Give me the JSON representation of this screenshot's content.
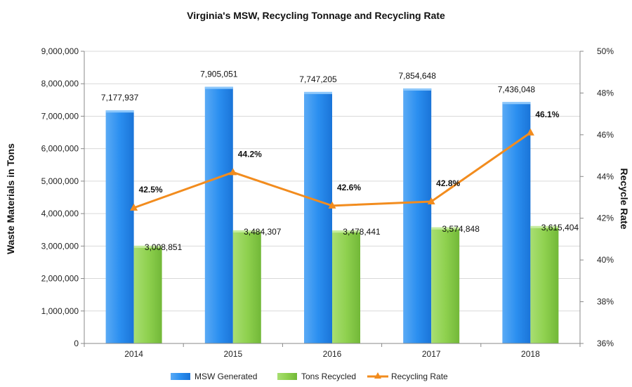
{
  "chart_data": {
    "type": "bar",
    "title": "Virginia's MSW, Recycling Tonnage and Recycling Rate",
    "ylabel": "Waste Materials in Tons",
    "y2label": "Recycle Rate",
    "xlabel": "",
    "categories": [
      "2014",
      "2015",
      "2016",
      "2017",
      "2018"
    ],
    "ylim": [
      0,
      9000000
    ],
    "y2lim": [
      36,
      50
    ],
    "yticks": [
      "0",
      "1,000,000",
      "2,000,000",
      "3,000,000",
      "4,000,000",
      "5,000,000",
      "6,000,000",
      "7,000,000",
      "8,000,000",
      "9,000,000"
    ],
    "y2ticks": [
      "36%",
      "38%",
      "40%",
      "42%",
      "44%",
      "46%",
      "48%",
      "50%"
    ],
    "series": [
      {
        "name": "MSW Generated",
        "type": "bar",
        "axis": "left",
        "color": "#2b8ff0",
        "values": [
          7177937,
          7905051,
          7747205,
          7854648,
          7436048
        ],
        "labels": [
          "7,177,937",
          "7,905,051",
          "7,747,205",
          "7,854,648",
          "7,436,048"
        ]
      },
      {
        "name": "Tons Recycled",
        "type": "bar",
        "axis": "left",
        "color": "#8fd14f",
        "values": [
          3008851,
          3484307,
          3478441,
          3574848,
          3615404
        ],
        "labels": [
          "3,008,851",
          "3,484,307",
          "3,478,441",
          "3,574,848",
          "3,615,404"
        ]
      },
      {
        "name": "Recycling Rate",
        "type": "line",
        "axis": "right",
        "color": "#f28c1e",
        "values": [
          42.5,
          44.2,
          42.6,
          42.8,
          46.1
        ],
        "labels": [
          "42.5%",
          "44.2%",
          "42.6%",
          "42.8%",
          "46.1%"
        ]
      }
    ],
    "legend": "bottom"
  }
}
